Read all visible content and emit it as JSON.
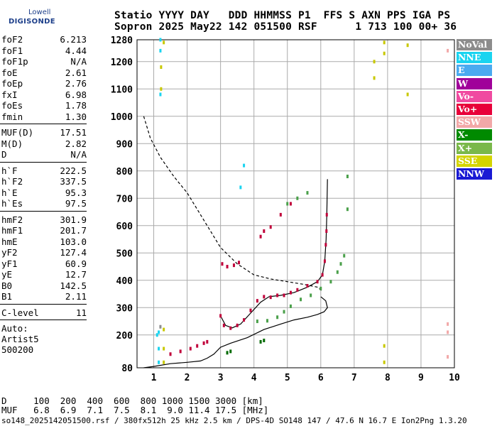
{
  "logo": {
    "top": "Lowell",
    "bottom": "DIGISONDE"
  },
  "header": {
    "line1": [
      "Statio",
      "YYYY",
      "DAY",
      "DDD",
      "HHMMSS",
      "P1",
      "FFS",
      "S",
      "AXN",
      "PPS",
      "IGA",
      "PS"
    ],
    "line2": [
      "Sopron",
      "2025",
      "May22",
      "142",
      "051500",
      "RSF",
      "1",
      "713",
      "100",
      "00+",
      "36"
    ]
  },
  "params": [
    [
      {
        "name": "foF2",
        "value": "6.213"
      },
      {
        "name": "foF1",
        "value": "4.44"
      },
      {
        "name": "foF1p",
        "value": "N/A"
      },
      {
        "name": "foE",
        "value": "2.61"
      },
      {
        "name": "foEp",
        "value": "2.76"
      },
      {
        "name": "fxI",
        "value": "6.98"
      },
      {
        "name": "foEs",
        "value": "1.78"
      },
      {
        "name": "fmin",
        "value": "1.30"
      }
    ],
    [
      {
        "name": "MUF(D)",
        "value": "17.51"
      },
      {
        "name": "M(D)",
        "value": "2.82"
      },
      {
        "name": "D",
        "value": "N/A"
      }
    ],
    [
      {
        "name": "h`F",
        "value": "222.5"
      },
      {
        "name": "h`F2",
        "value": "337.5"
      },
      {
        "name": "h`E",
        "value": "95.3"
      },
      {
        "name": "h`Es",
        "value": "97.5"
      }
    ],
    [
      {
        "name": "hmF2",
        "value": "301.9"
      },
      {
        "name": "hmF1",
        "value": "201.7"
      },
      {
        "name": "hmE",
        "value": "103.0"
      },
      {
        "name": "yF2",
        "value": "127.4"
      },
      {
        "name": "yF1",
        "value": "60.9"
      },
      {
        "name": "yE",
        "value": "12.7"
      },
      {
        "name": "B0",
        "value": "142.5"
      },
      {
        "name": "B1",
        "value": "2.11"
      }
    ],
    [
      {
        "name": "C-level",
        "value": "11"
      }
    ]
  ],
  "auto": {
    "label": "Auto:",
    "name": "Artist5",
    "number": "500200"
  },
  "legend": [
    {
      "label": "NoVal",
      "color": "#8c8c8c"
    },
    {
      "label": "NNE",
      "color": "#1ad4f0"
    },
    {
      "label": "E",
      "color": "#4aaaf0"
    },
    {
      "label": "W",
      "color": "#a0009a"
    },
    {
      "label": "Vo-",
      "color": "#f04aa0"
    },
    {
      "label": "Vo+",
      "color": "#e8003a"
    },
    {
      "label": "SSW",
      "color": "#f2a8a8"
    },
    {
      "label": "X-",
      "color": "#008a00"
    },
    {
      "label": "X+",
      "color": "#7ab84a"
    },
    {
      "label": "SSE",
      "color": "#d4d400"
    },
    {
      "label": "NNW",
      "color": "#1a1ad4"
    }
  ],
  "footer": {
    "d_row": "D     100  200  400  600  800 1000 1500 3000 [km]",
    "muf_row": "MUF   6.8  6.9  7.1  7.5  8.1  9.0 11.4 17.5 [MHz]",
    "info": "so148_2025142051500.rsf / 380fx512h 25 kHz 2.5 km / DPS-4D SO148 147 / 47.6 N 16.7 E Ion2Png 1.3.20"
  },
  "chart_data": {
    "type": "scatter",
    "title": "",
    "xlabel": "",
    "ylabel": "",
    "xlim": [
      0.5,
      10
    ],
    "ylim": [
      80,
      1280
    ],
    "xticks": [
      1,
      2,
      3,
      4,
      5,
      6,
      7,
      8,
      9,
      10
    ],
    "yticks": [
      80,
      200,
      300,
      400,
      500,
      600,
      700,
      800,
      900,
      1000,
      1100,
      1200,
      1280
    ],
    "grid": true,
    "legend_position": "right",
    "series": [
      {
        "name": "Vo+",
        "color": "#c0003a",
        "points": [
          [
            3.0,
            270
          ],
          [
            3.1,
            235
          ],
          [
            3.3,
            225
          ],
          [
            3.5,
            235
          ],
          [
            3.7,
            255
          ],
          [
            3.9,
            290
          ],
          [
            4.1,
            325
          ],
          [
            4.3,
            340
          ],
          [
            4.5,
            338
          ],
          [
            4.7,
            345
          ],
          [
            4.9,
            345
          ],
          [
            5.1,
            355
          ],
          [
            5.3,
            365
          ],
          [
            5.6,
            380
          ],
          [
            5.9,
            395
          ],
          [
            6.05,
            420
          ],
          [
            6.12,
            470
          ],
          [
            6.15,
            530
          ],
          [
            6.17,
            580
          ],
          [
            6.18,
            640
          ],
          [
            3.05,
            460
          ],
          [
            3.2,
            450
          ],
          [
            3.4,
            455
          ],
          [
            3.55,
            465
          ],
          [
            4.2,
            560
          ],
          [
            4.3,
            580
          ],
          [
            4.5,
            595
          ],
          [
            4.8,
            640
          ],
          [
            5.1,
            680
          ],
          [
            1.5,
            130
          ],
          [
            1.8,
            140
          ],
          [
            2.1,
            150
          ],
          [
            2.3,
            160
          ],
          [
            2.5,
            170
          ],
          [
            2.6,
            175
          ]
        ]
      },
      {
        "name": "X+",
        "color": "#4aa04a",
        "points": [
          [
            4.1,
            250
          ],
          [
            4.4,
            252
          ],
          [
            4.7,
            265
          ],
          [
            4.9,
            285
          ],
          [
            5.1,
            305
          ],
          [
            5.4,
            330
          ],
          [
            5.7,
            345
          ],
          [
            6.0,
            370
          ],
          [
            6.3,
            395
          ],
          [
            6.5,
            430
          ],
          [
            6.6,
            460
          ],
          [
            6.7,
            490
          ],
          [
            5.0,
            680
          ],
          [
            5.3,
            700
          ],
          [
            5.6,
            720
          ],
          [
            6.8,
            660
          ],
          [
            6.8,
            780
          ]
        ]
      },
      {
        "name": "X-",
        "color": "#006a00",
        "points": [
          [
            3.2,
            135
          ],
          [
            3.3,
            140
          ],
          [
            4.2,
            175
          ],
          [
            4.3,
            180
          ]
        ]
      },
      {
        "name": "NNE",
        "color": "#1ad4f0",
        "points": [
          [
            1.1,
            200
          ],
          [
            1.15,
            210
          ],
          [
            1.2,
            1280
          ],
          [
            1.2,
            1240
          ],
          [
            1.2,
            1080
          ],
          [
            1.15,
            150
          ],
          [
            1.15,
            100
          ],
          [
            3.7,
            820
          ],
          [
            3.6,
            740
          ]
        ]
      },
      {
        "name": "SSE",
        "color": "#c8c800",
        "points": [
          [
            1.22,
            1180
          ],
          [
            1.22,
            1100
          ],
          [
            1.3,
            1270
          ],
          [
            1.3,
            220
          ],
          [
            1.3,
            150
          ],
          [
            1.3,
            100
          ],
          [
            7.6,
            1200
          ],
          [
            7.6,
            1140
          ],
          [
            7.9,
            1270
          ],
          [
            7.9,
            1230
          ],
          [
            7.9,
            160
          ],
          [
            7.9,
            100
          ],
          [
            8.6,
            1260
          ],
          [
            8.6,
            1080
          ]
        ]
      },
      {
        "name": "SSW",
        "color": "#f2a8a8",
        "points": [
          [
            9.8,
            240
          ],
          [
            9.8,
            210
          ],
          [
            9.8,
            120
          ],
          [
            9.8,
            1240
          ]
        ]
      },
      {
        "name": "NoVal",
        "color": "#8c8c8c",
        "points": [
          [
            1.2,
            230
          ]
        ]
      }
    ],
    "curves": [
      {
        "name": "profile",
        "style": "solid",
        "points": [
          [
            0.7,
            80
          ],
          [
            1.0,
            85
          ],
          [
            1.5,
            95
          ],
          [
            2.0,
            100
          ],
          [
            2.4,
            105
          ],
          [
            2.6,
            115
          ],
          [
            2.8,
            130
          ],
          [
            3.0,
            155
          ],
          [
            3.3,
            170
          ],
          [
            3.8,
            190
          ],
          [
            4.3,
            220
          ],
          [
            4.8,
            240
          ],
          [
            5.2,
            255
          ],
          [
            5.6,
            265
          ],
          [
            5.9,
            275
          ],
          [
            6.1,
            285
          ],
          [
            6.2,
            300
          ],
          [
            6.15,
            325
          ],
          [
            6.0,
            340
          ]
        ]
      },
      {
        "name": "MUF-dash",
        "style": "dashed",
        "points": [
          [
            0.7,
            1000
          ],
          [
            0.9,
            920
          ],
          [
            1.2,
            850
          ],
          [
            1.6,
            780
          ],
          [
            2.0,
            720
          ],
          [
            2.5,
            620
          ],
          [
            3.0,
            520
          ],
          [
            3.5,
            460
          ],
          [
            4.0,
            420
          ],
          [
            4.5,
            405
          ],
          [
            5.0,
            395
          ],
          [
            5.5,
            385
          ],
          [
            5.9,
            375
          ],
          [
            6.05,
            360
          ]
        ]
      },
      {
        "name": "virtual-height",
        "style": "solid",
        "points": [
          [
            3.0,
            270
          ],
          [
            3.15,
            235
          ],
          [
            3.35,
            226
          ],
          [
            3.6,
            240
          ],
          [
            3.9,
            280
          ],
          [
            4.2,
            320
          ],
          [
            4.45,
            340
          ],
          [
            4.8,
            345
          ],
          [
            5.2,
            355
          ],
          [
            5.6,
            375
          ],
          [
            5.9,
            395
          ],
          [
            6.05,
            420
          ],
          [
            6.12,
            470
          ],
          [
            6.16,
            550
          ],
          [
            6.18,
            640
          ],
          [
            6.2,
            770
          ]
        ]
      }
    ]
  }
}
